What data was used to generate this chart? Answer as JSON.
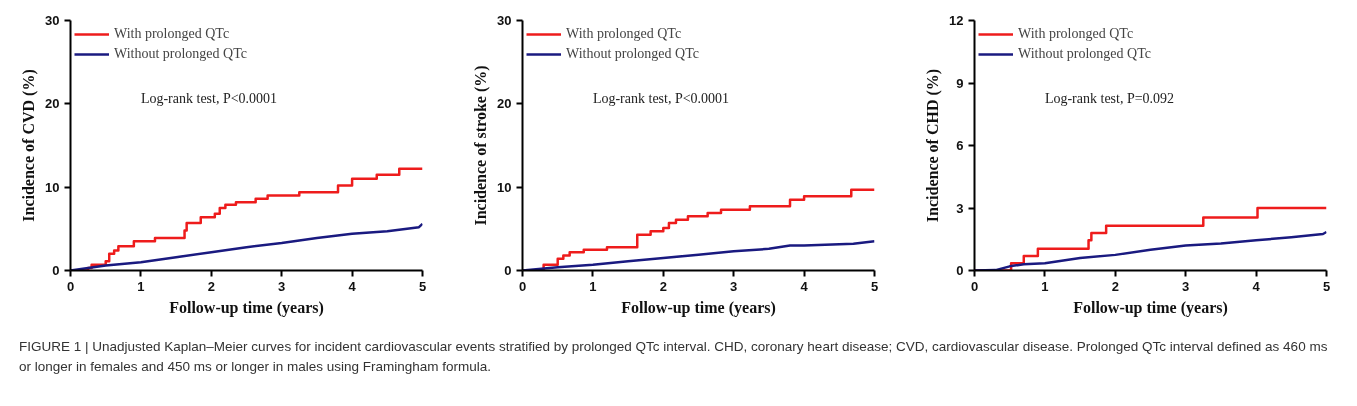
{
  "chart_data": [
    {
      "type": "step",
      "xlabel": "Follow-up time (years)",
      "ylabel": "Incidence of CVD (%)",
      "xlim": [
        0,
        5
      ],
      "xticks": [
        0,
        1,
        2,
        3,
        4,
        5
      ],
      "ylim": [
        0,
        30
      ],
      "yticks": [
        0,
        10,
        20,
        30
      ],
      "grid": false,
      "legend": "top left",
      "annotations": [
        "Log-rank test, P<0.0001",
        "FIGURE 1 | Unadjusted Kaplan–Meier curves for incident cardiovascular events stratified by prolonged QTc interval. CHD, coronary heart disease; CVD, cardiovascular disease. Prolonged QTc interval defined as 460 ms or longer in females and 450 ms or longer in males using Framingham formula."
      ],
      "series": [
        {
          "name": "With prolonged QTc",
          "color": "#ee1c1c",
          "x": [
            0,
            0.25,
            0.3,
            0.5,
            0.55,
            0.62,
            0.68,
            0.9,
            1.2,
            1.62,
            1.65,
            1.85,
            2.05,
            2.12,
            2.2,
            2.35,
            2.63,
            2.8,
            3.25,
            3.8,
            4.0,
            4.35,
            4.67,
            5
          ],
          "values": [
            0,
            0.3,
            0.7,
            1.1,
            2.0,
            2.4,
            2.9,
            3.5,
            3.9,
            4.8,
            5.7,
            6.4,
            6.8,
            7.5,
            7.9,
            8.2,
            8.6,
            9.0,
            9.4,
            10.2,
            11.0,
            11.5,
            12.2,
            12.2
          ]
        },
        {
          "name": "Without prolonged QTc",
          "color": "#1a1a80",
          "type": "line",
          "x": [
            0,
            0.5,
            1,
            1.5,
            2,
            2.5,
            3,
            3.5,
            4,
            4.5,
            4.95,
            5
          ],
          "values": [
            0,
            0.6,
            1.0,
            1.6,
            2.2,
            2.8,
            3.3,
            3.9,
            4.4,
            4.7,
            5.2,
            5.6
          ]
        }
      ]
    },
    {
      "type": "step",
      "xlabel": "Follow-up time (years)",
      "ylabel": "Incidence of stroke (%)",
      "xlim": [
        0,
        5
      ],
      "xticks": [
        0,
        1,
        2,
        3,
        4,
        5
      ],
      "ylim": [
        0,
        30
      ],
      "yticks": [
        0,
        10,
        20,
        30
      ],
      "grid": false,
      "legend": "top left",
      "annotations": [
        "Log-rank test, P<0.0001"
      ],
      "series": [
        {
          "name": "With prolonged QTc",
          "color": "#ee1c1c",
          "x": [
            0,
            0.3,
            0.5,
            0.58,
            0.67,
            0.87,
            1.2,
            1.63,
            1.82,
            2.0,
            2.08,
            2.18,
            2.35,
            2.63,
            2.82,
            3.23,
            3.8,
            4.0,
            4.67,
            5
          ],
          "values": [
            0,
            0.7,
            1.4,
            1.8,
            2.2,
            2.5,
            2.8,
            4.3,
            4.7,
            5.1,
            5.7,
            6.1,
            6.5,
            6.9,
            7.3,
            7.7,
            8.5,
            8.9,
            9.7,
            9.7
          ]
        },
        {
          "name": "Without prolonged QTc",
          "color": "#1a1a80",
          "type": "line",
          "x": [
            0,
            0.5,
            1,
            1.5,
            2,
            2.5,
            3,
            3.5,
            3.8,
            4,
            4.7,
            5
          ],
          "values": [
            0,
            0.4,
            0.7,
            1.1,
            1.5,
            1.9,
            2.3,
            2.6,
            3.0,
            3.0,
            3.2,
            3.5
          ]
        }
      ]
    },
    {
      "type": "step",
      "xlabel": "Follow-up time (years)",
      "ylabel": "Incidence of CHD (%)",
      "xlim": [
        0,
        5
      ],
      "xticks": [
        0,
        1,
        2,
        3,
        4,
        5
      ],
      "ylim": [
        0,
        12
      ],
      "yticks": [
        0,
        3,
        6,
        9,
        12
      ],
      "grid": false,
      "legend": "top left",
      "annotations": [
        "Log-rank test, P=0.092"
      ],
      "series": [
        {
          "name": "With prolonged QTc",
          "color": "#ee1c1c",
          "x": [
            0,
            0.52,
            0.7,
            0.9,
            1.62,
            1.66,
            1.87,
            3.25,
            4.02,
            5
          ],
          "values": [
            0,
            0.35,
            0.7,
            1.05,
            1.45,
            1.8,
            2.15,
            2.55,
            3.0,
            3.0
          ]
        },
        {
          "name": "Without prolonged QTc",
          "color": "#1a1a80",
          "type": "line",
          "x": [
            0,
            0.3,
            0.5,
            0.7,
            1,
            1.5,
            2,
            2.5,
            3,
            3.5,
            4,
            4.5,
            4.95,
            5
          ],
          "values": [
            0,
            0.02,
            0.2,
            0.3,
            0.35,
            0.6,
            0.75,
            1.0,
            1.2,
            1.3,
            1.45,
            1.6,
            1.75,
            1.85
          ]
        }
      ]
    }
  ]
}
